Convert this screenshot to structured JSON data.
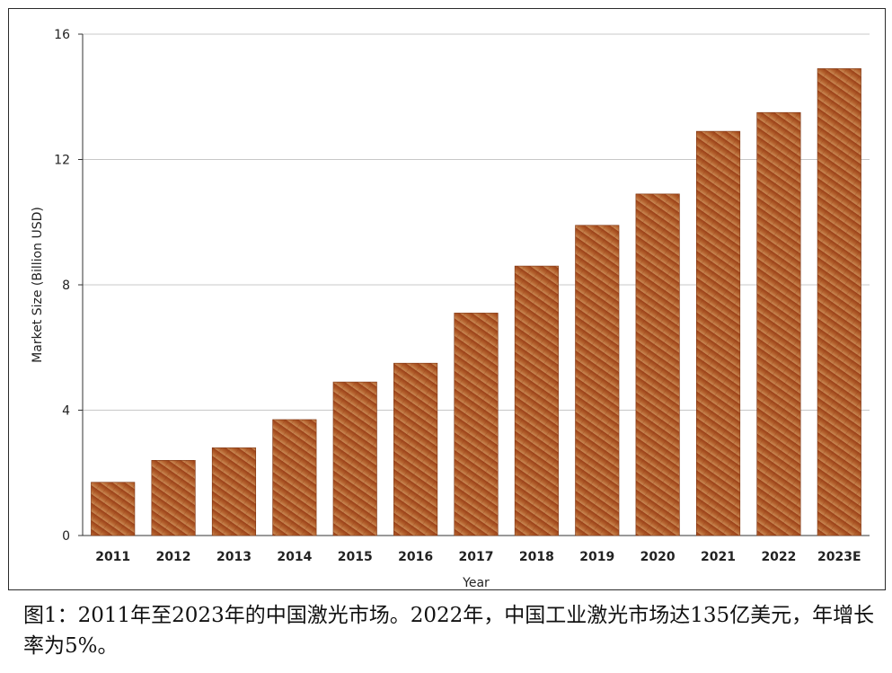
{
  "chart_data": {
    "type": "bar",
    "categories": [
      "2011",
      "2012",
      "2013",
      "2014",
      "2015",
      "2016",
      "2017",
      "2018",
      "2019",
      "2020",
      "2021",
      "2022",
      "2023E"
    ],
    "values": [
      1.7,
      2.4,
      2.8,
      3.7,
      4.9,
      5.5,
      7.1,
      8.6,
      9.9,
      10.9,
      12.9,
      13.5,
      14.9
    ],
    "xlabel": "Year",
    "ylabel": "Market Size (Billion USD)",
    "ylim": [
      0,
      16
    ],
    "yticks": [
      0,
      4,
      8,
      12,
      16
    ],
    "grid": true,
    "bar_color": "#a94e1f"
  },
  "caption": "图1：2011年至2023年的中国激光市场。2022年，中国工业激光市场达135亿美元，年增长率为5%。"
}
